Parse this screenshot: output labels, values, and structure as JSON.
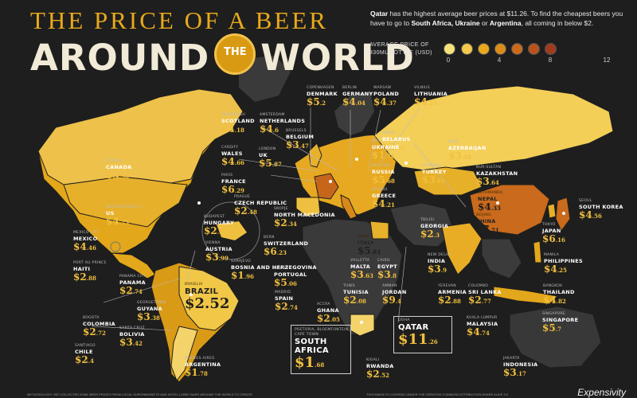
{
  "title": {
    "line1": "THE PRICE OF A BEER",
    "line2a": "AROUND",
    "badge": "THE",
    "line2b": "WORLD"
  },
  "intro": {
    "p1": "Qatar",
    "p2": " has the highest average beer prices at $11.26. To find the cheapest beers you have to go to ",
    "p3": "South Africa, Ukraine",
    "p4": " or ",
    "p5": "Argentina",
    "p6": ", all coming in below $2."
  },
  "legend": {
    "label": "AVERAGE PRICE OF 330ML BOTTLE (USD)",
    "ticks": [
      "0",
      "4",
      "8",
      "12"
    ],
    "colors": [
      "#f6e27a",
      "#f2c94c",
      "#e8a91c",
      "#d98c1a",
      "#c96a1c",
      "#b8521e",
      "#a23a1e"
    ]
  },
  "countries": [
    {
      "id": "canada",
      "city": "OTTAWA",
      "name": "CANADA",
      "price": "$3",
      "cents": ".96"
    },
    {
      "id": "us",
      "city": "WASHINGTON D.C.",
      "name": "US",
      "price": "$4",
      "cents": ".73"
    },
    {
      "id": "mexico",
      "city": "MEXICO CITY",
      "name": "MEXICO",
      "price": "$4",
      "cents": ".46"
    },
    {
      "id": "haiti",
      "city": "PORT AU PRINCE",
      "name": "HAITI",
      "price": "$2",
      "cents": ".88"
    },
    {
      "id": "panama",
      "city": "PANAMA CITY",
      "name": "PANAMA",
      "price": "$2",
      "cents": ".74"
    },
    {
      "id": "colombia",
      "city": "BOGOTA",
      "name": "COLOMBIA",
      "price": "$2",
      "cents": ".72"
    },
    {
      "id": "guyana",
      "city": "GEORGETOWN",
      "name": "GUYANA",
      "price": "$3",
      "cents": ".38"
    },
    {
      "id": "bolivia",
      "city": "SANTA CRUZ",
      "name": "BOLIVIA",
      "price": "$3",
      "cents": ".42"
    },
    {
      "id": "chile",
      "city": "SANTIAGO",
      "name": "CHILE",
      "price": "$2",
      "cents": ".4"
    },
    {
      "id": "brazil",
      "city": "BRASILIA",
      "name": "BRAZIL",
      "price": "$2.52",
      "cents": ""
    },
    {
      "id": "argentina",
      "city": "BUENOS AIRES",
      "name": "ARGENTINA",
      "price": "$1",
      "cents": ".78"
    },
    {
      "id": "scotland",
      "city": "EDINBURGH",
      "name": "SCOTLAND",
      "price": "$4",
      "cents": ".18"
    },
    {
      "id": "wales",
      "city": "CARDIFF",
      "name": "WALES",
      "price": "$4",
      "cents": ".66"
    },
    {
      "id": "france",
      "city": "PARIS",
      "name": "FRANCE",
      "price": "$6",
      "cents": ".29"
    },
    {
      "id": "uk",
      "city": "LONDON",
      "name": "UK",
      "price": "$5",
      "cents": ".87"
    },
    {
      "id": "netherlands",
      "city": "AMSTERDAM",
      "name": "NETHERLANDS",
      "price": "$4",
      "cents": ".6"
    },
    {
      "id": "denmark",
      "city": "COPENHAGEN",
      "name": "DENMARK",
      "price": "$5",
      "cents": ".2"
    },
    {
      "id": "germany",
      "city": "BERLIN",
      "name": "GERMANY",
      "price": "$4",
      "cents": ".04"
    },
    {
      "id": "poland",
      "city": "WARSAW",
      "name": "POLAND",
      "price": "$4",
      "cents": ".37"
    },
    {
      "id": "lithuania",
      "city": "VILNIUS",
      "name": "LITHUANIA",
      "price": "$4",
      "cents": ".55"
    },
    {
      "id": "belarus",
      "city": "MINSK",
      "name": "BELARUS",
      "price": "$3",
      "cents": ".72"
    },
    {
      "id": "belgium",
      "city": "BRUSSELS",
      "name": "BELGIUM",
      "price": "$3",
      "cents": ".47"
    },
    {
      "id": "czech",
      "city": "PRAGUE",
      "name": "CZECH REPUBLIC",
      "price": "$2",
      "cents": ".48"
    },
    {
      "id": "hungary",
      "city": "BUDAPEST",
      "name": "HUNGARY",
      "price": "$2",
      "cents": ".64"
    },
    {
      "id": "austria",
      "city": "VIENNA",
      "name": "AUSTRIA",
      "price": "$3",
      "cents": ".99"
    },
    {
      "id": "bosnia",
      "city": "SARAJEVO",
      "name": "BOSNIA AND HERZEGOVINA",
      "price": "$1",
      "cents": ".96"
    },
    {
      "id": "northmacedonia",
      "city": "SKOPJE",
      "name": "NORTH MACEDONIA",
      "price": "$2",
      "cents": ".34"
    },
    {
      "id": "switzerland",
      "city": "BERN",
      "name": "SWITZERLAND",
      "price": "$6",
      "cents": ".23"
    },
    {
      "id": "portugal",
      "city": "LISBON",
      "name": "PORTUGAL",
      "price": "$5",
      "cents": ".06"
    },
    {
      "id": "spain",
      "city": "MADRID",
      "name": "SPAIN",
      "price": "$2",
      "cents": ".74"
    },
    {
      "id": "ukraine",
      "city": "KYIV",
      "name": "UKRAINE",
      "price": "$1",
      "cents": ".76"
    },
    {
      "id": "russia",
      "city": "MOSCOW",
      "name": "RUSSIA",
      "price": "$5",
      "cents": ".68"
    },
    {
      "id": "turkey",
      "city": "ISTANBUL",
      "name": "TURKEY",
      "price": "$3",
      "cents": ".81"
    },
    {
      "id": "greece",
      "city": "ATHENS",
      "name": "GREECE",
      "price": "$4",
      "cents": ".21"
    },
    {
      "id": "azerbaijan",
      "city": "BAKU",
      "name": "AZERBAIJAN",
      "price": "$3",
      "cents": ".18"
    },
    {
      "id": "kazakhstan",
      "city": "NUR-SULTAN",
      "name": "KAZAKHSTAN",
      "price": "$3",
      "cents": ".64"
    },
    {
      "id": "georgia",
      "city": "TBILISI",
      "name": "GEORGIA",
      "price": "$2",
      "cents": ".3"
    },
    {
      "id": "italy",
      "city": "ROME",
      "name": "ITALY",
      "price": "$5",
      "cents": ".83"
    },
    {
      "id": "malta",
      "city": "VALLETTA",
      "name": "MALTA",
      "price": "$3",
      "cents": ".63"
    },
    {
      "id": "egypt",
      "city": "CAIRO",
      "name": "EGYPT",
      "price": "$3",
      "cents": ".8"
    },
    {
      "id": "tunisia",
      "city": "TUNIS",
      "name": "TUNISIA",
      "price": "$2",
      "cents": ".08"
    },
    {
      "id": "jordan",
      "city": "AMMAN",
      "name": "JORDAN",
      "price": "$9",
      "cents": ".4"
    },
    {
      "id": "armenia",
      "city": "YEREVAN",
      "name": "ARMENIA",
      "price": "$2",
      "cents": ".88"
    },
    {
      "id": "india",
      "city": "NEW DELHI",
      "name": "INDIA",
      "price": "$3",
      "cents": ".9"
    },
    {
      "id": "nepal",
      "city": "KATHMANDU",
      "name": "NEPAL",
      "price": "$4",
      "cents": ".33"
    },
    {
      "id": "china",
      "city": "BEIJING",
      "name": "CHINA",
      "price": "$7",
      "cents": ".71"
    },
    {
      "id": "southkorea",
      "city": "SEOUL",
      "name": "SOUTH KOREA",
      "price": "$4",
      "cents": ".56"
    },
    {
      "id": "japan",
      "city": "TOKYO",
      "name": "JAPAN",
      "price": "$6",
      "cents": ".16"
    },
    {
      "id": "philippines",
      "city": "MANILA",
      "name": "PHILIPPINES",
      "price": "$4",
      "cents": ".25"
    },
    {
      "id": "thailand",
      "city": "BANGKOK",
      "name": "THAILAND",
      "price": "$4",
      "cents": ".82"
    },
    {
      "id": "srilanka",
      "city": "COLOMBO",
      "name": "SRI LANKA",
      "price": "$2",
      "cents": ".77"
    },
    {
      "id": "singapore",
      "city": "SINGAPORE",
      "name": "SINGAPORE",
      "price": "$5",
      "cents": ".7"
    },
    {
      "id": "malaysia",
      "city": "KUALA LUMPUR",
      "name": "MALAYSIA",
      "price": "$4",
      "cents": ".74"
    },
    {
      "id": "indonesia",
      "city": "JAKARTA",
      "name": "INDONESIA",
      "price": "$3",
      "cents": ".17"
    },
    {
      "id": "ghana",
      "city": "ACCRA",
      "name": "GHANA",
      "price": "$2",
      "cents": ".05"
    },
    {
      "id": "rwanda",
      "city": "KIGALI",
      "name": "RWANDA",
      "price": "$2",
      "cents": ".52"
    },
    {
      "id": "southafrica",
      "city": "PRETORIA, BLOEMFONTEIN, CAPE TOWN",
      "name": "SOUTH AFRICA",
      "price": "$1",
      "cents": ".68"
    },
    {
      "id": "qatar",
      "city": "DOHA",
      "name": "QATAR",
      "price": "$11",
      "cents": ".26"
    }
  ],
  "footer": {
    "methodology": "METHODOLOGY: WE COLLECTED 5OML BEER PRICES FROM LOCAL SUPERMARKETS AND HOTEL LOBBY BARS AROUND THE WORLD TO CREATE",
    "license": "THIS IMAGE IS LICENSED UNDER THE CREATIVE COMMONS ATTRIBUTION-SHARE ALIKE 3.0",
    "brand": "Expensivity"
  }
}
